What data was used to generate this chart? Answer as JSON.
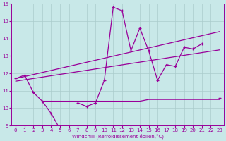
{
  "xlabel": "Windchill (Refroidissement éolien,°C)",
  "background_color": "#c8e8e8",
  "grid_color": "#aacccc",
  "line_color": "#990099",
  "ylim": [
    9,
    16
  ],
  "xlim": [
    -0.5,
    23.5
  ],
  "yticks": [
    9,
    10,
    11,
    12,
    13,
    14,
    15,
    16
  ],
  "xticks": [
    0,
    1,
    2,
    3,
    4,
    5,
    6,
    7,
    8,
    9,
    10,
    11,
    12,
    13,
    14,
    15,
    16,
    17,
    18,
    19,
    20,
    21,
    22,
    23
  ],
  "line1_data": [
    11.7,
    11.9,
    10.9,
    10.4,
    9.7,
    8.8,
    null,
    10.3,
    10.1,
    10.3,
    11.6,
    15.8,
    15.6,
    13.3,
    14.6,
    13.3,
    11.6,
    12.5,
    12.4,
    13.5,
    13.4,
    13.7,
    null,
    10.6
  ],
  "line_trend1": [
    [
      0,
      11.7
    ],
    [
      23,
      14.4
    ]
  ],
  "line_trend2": [
    [
      0,
      11.55
    ],
    [
      23,
      13.35
    ]
  ],
  "line_flat_x": [
    3,
    4,
    5,
    6,
    7,
    8,
    9,
    10,
    11,
    12,
    13,
    14,
    15,
    16,
    17,
    18,
    19,
    20,
    21,
    22,
    23
  ],
  "line_flat_y": [
    10.4,
    10.4,
    10.4,
    10.4,
    10.4,
    10.4,
    10.4,
    10.4,
    10.4,
    10.4,
    10.4,
    10.4,
    10.5,
    10.5,
    10.5,
    10.5,
    10.5,
    10.5,
    10.5,
    10.5,
    10.5
  ]
}
